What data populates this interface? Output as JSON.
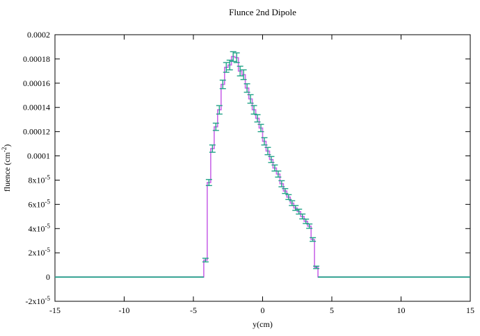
{
  "title": "Flunce 2nd Dipole",
  "chart_data": {
    "type": "line",
    "subtype": "step-histogram-with-errorbars",
    "title": "Flunce 2nd Dipole",
    "xlabel": "y(cm)",
    "ylabel": {
      "pre": "fluence (cm",
      "sup": "-2",
      "post": ")"
    },
    "xlim": [
      -15,
      15
    ],
    "ylim": [
      -2e-05,
      0.0002
    ],
    "grid": false,
    "legend": "none",
    "xticks": [
      -15,
      -10,
      -5,
      0,
      5,
      10,
      15
    ],
    "xtick_labels": [
      "-15",
      "-10",
      "-5",
      "0",
      "5",
      "10",
      "15"
    ],
    "yticks": [
      {
        "value": 0.0002,
        "base": "0.0002",
        "sup": ""
      },
      {
        "value": 0.00018,
        "base": "0.00018",
        "sup": ""
      },
      {
        "value": 0.00016,
        "base": "0.00016",
        "sup": ""
      },
      {
        "value": 0.00014,
        "base": "0.00014",
        "sup": ""
      },
      {
        "value": 0.00012,
        "base": "0.00012",
        "sup": ""
      },
      {
        "value": 0.0001,
        "base": "0.0001",
        "sup": ""
      },
      {
        "value": 8e-05,
        "base": "8x10",
        "sup": "-5"
      },
      {
        "value": 6e-05,
        "base": "6x10",
        "sup": "-5"
      },
      {
        "value": 4e-05,
        "base": "4x10",
        "sup": "-5"
      },
      {
        "value": 2e-05,
        "base": "2x10",
        "sup": "-5"
      },
      {
        "value": 0,
        "base": "0",
        "sup": ""
      },
      {
        "value": -2e-05,
        "base": "-2x10",
        "sup": "-5"
      }
    ],
    "line_color": "#c966e8",
    "errorbar_color": "#21a287",
    "units": "cm^-2",
    "bin_width": 0.25,
    "bins_format": [
      "x0",
      "x1",
      "fluence",
      "error"
    ],
    "bins": [
      [
        -4.25,
        -4.0,
        1.4e-05,
        1.5e-06
      ],
      [
        -4.0,
        -3.75,
        7.8e-05,
        2.5e-06
      ],
      [
        -3.75,
        -3.5,
        0.000106,
        3e-06
      ],
      [
        -3.5,
        -3.25,
        0.000124,
        3e-06
      ],
      [
        -3.25,
        -3.0,
        0.000138,
        3.5e-06
      ],
      [
        -3.0,
        -2.75,
        0.000159,
        3.5e-06
      ],
      [
        -2.75,
        -2.5,
        0.000173,
        4e-06
      ],
      [
        -2.5,
        -2.25,
        0.000175,
        4e-06
      ],
      [
        -2.25,
        -2.0,
        0.000182,
        4e-06
      ],
      [
        -2.0,
        -1.75,
        0.000181,
        4e-06
      ],
      [
        -1.75,
        -1.5,
        0.00017,
        4e-06
      ],
      [
        -1.5,
        -1.25,
        0.000167,
        4e-06
      ],
      [
        -1.25,
        -1.0,
        0.000156,
        3.5e-06
      ],
      [
        -1.0,
        -0.75,
        0.000147,
        3.5e-06
      ],
      [
        -0.75,
        -0.5,
        0.000138,
        3.5e-06
      ],
      [
        -0.5,
        -0.25,
        0.000131,
        3e-06
      ],
      [
        -0.25,
        0.0,
        0.000123,
        3e-06
      ],
      [
        0.0,
        0.25,
        0.000112,
        3e-06
      ],
      [
        0.25,
        0.5,
        0.000104,
        3e-06
      ],
      [
        0.5,
        0.75,
        9.7e-05,
        2.5e-06
      ],
      [
        0.75,
        1.0,
        9e-05,
        2.5e-06
      ],
      [
        1.0,
        1.25,
        8.5e-05,
        2.5e-06
      ],
      [
        1.25,
        1.5,
        7.7e-05,
        2.5e-06
      ],
      [
        1.5,
        1.75,
        7.1e-05,
        2e-06
      ],
      [
        1.75,
        2.0,
        6.6e-05,
        2e-06
      ],
      [
        2.0,
        2.25,
        6.1e-05,
        2e-06
      ],
      [
        2.25,
        2.5,
        5.7e-05,
        2e-06
      ],
      [
        2.5,
        2.75,
        5.4e-05,
        2e-06
      ],
      [
        2.75,
        3.0,
        5e-05,
        2e-06
      ],
      [
        3.0,
        3.25,
        4.6e-05,
        1.8e-06
      ],
      [
        3.25,
        3.5,
        4.2e-05,
        1.8e-06
      ],
      [
        3.5,
        3.75,
        3.1e-05,
        1.5e-06
      ],
      [
        3.75,
        4.0,
        8e-06,
        1e-06
      ]
    ],
    "baseline_value": 0,
    "baseline_segments": [
      [
        -15,
        -4.25
      ],
      [
        4.0,
        15
      ]
    ]
  }
}
